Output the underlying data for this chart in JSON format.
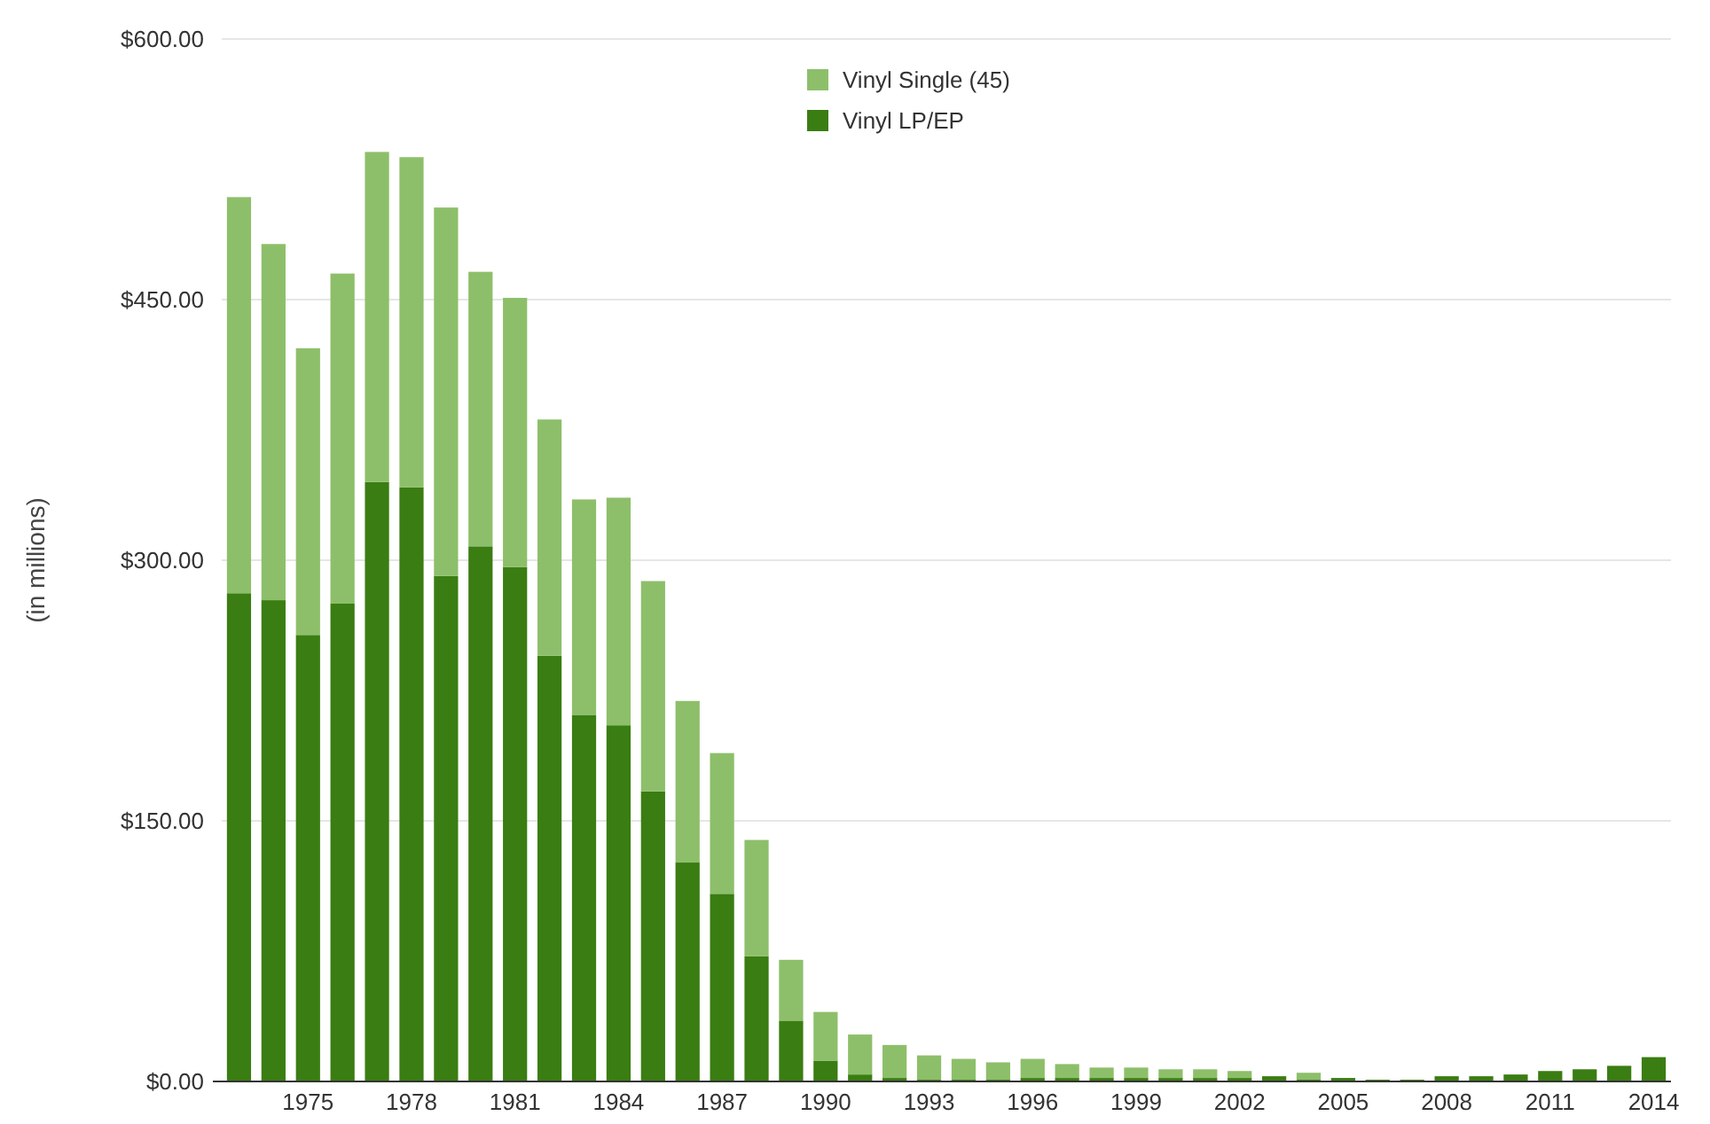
{
  "chart_data": {
    "type": "bar",
    "stacked": true,
    "ylabel": "(in millions)",
    "categories": [
      null,
      null,
      "1975",
      null,
      null,
      "1978",
      null,
      null,
      "1981",
      null,
      null,
      "1984",
      null,
      null,
      "1987",
      null,
      null,
      "1990",
      null,
      null,
      "1993",
      null,
      null,
      "1996",
      null,
      null,
      "1999",
      null,
      null,
      "2002",
      null,
      null,
      "2005",
      null,
      null,
      "2008",
      null,
      null,
      "2011",
      null,
      null,
      "2014"
    ],
    "series": [
      {
        "name": "Vinyl LP/EP",
        "color": "#3a7d12",
        "values": [
          281,
          277,
          257,
          275,
          345,
          342,
          291,
          308,
          296,
          245,
          211,
          205,
          167,
          126,
          108,
          72,
          35,
          12,
          4,
          2,
          1,
          1,
          1,
          2,
          2,
          2,
          2,
          2,
          2,
          2,
          3,
          1,
          2,
          1,
          1,
          3,
          3,
          4,
          6,
          7,
          9,
          14
        ]
      },
      {
        "name": "Vinyl Single (45)",
        "color": "#8dbf6a",
        "values": [
          228,
          205,
          165,
          190,
          190,
          190,
          212,
          158,
          155,
          136,
          124,
          131,
          121,
          93,
          81,
          67,
          35,
          28,
          23,
          19,
          14,
          12,
          10,
          11,
          8,
          6,
          6,
          5,
          5,
          4,
          0,
          4,
          0,
          0,
          0,
          0,
          0,
          0,
          0,
          0,
          0,
          0
        ]
      }
    ],
    "ylim": [
      0,
      600
    ],
    "yticks": [
      {
        "value": 0,
        "label": "$0.00"
      },
      {
        "value": 150,
        "label": "$150.00"
      },
      {
        "value": 300,
        "label": "$300.00"
      },
      {
        "value": 450,
        "label": "$450.00"
      },
      {
        "value": 600,
        "label": "$600.00"
      }
    ],
    "grid": "y",
    "legend": "top"
  }
}
